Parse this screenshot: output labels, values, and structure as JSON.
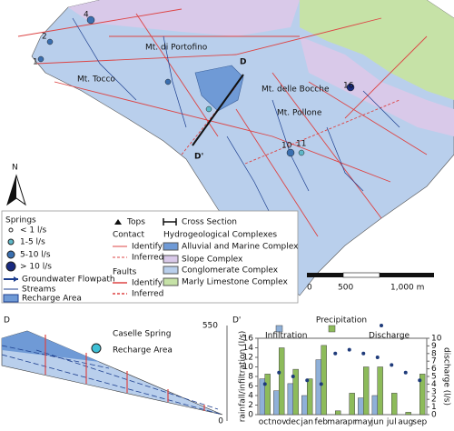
{
  "map": {
    "labels": [
      "Mt. di Portofino",
      "Mt. Tocco",
      "D",
      "Mt. delle Bocche",
      "Mt. Pollone",
      "D'",
      "N"
    ],
    "spring_numbers": [
      "1",
      "2",
      "4",
      "10",
      "11",
      "16"
    ],
    "scale": [
      "0",
      "500",
      "1,000 m"
    ]
  },
  "legend": {
    "springs_title": "Springs",
    "springs": [
      "< 1 l/s",
      "1-5 l/s",
      "5-10 l/s",
      "> 10 l/s"
    ],
    "flowpath": "Groundwater Flowpath",
    "streams": "Streams",
    "recharge": "Recharge Area",
    "tops": "Tops",
    "contact": "Contact",
    "contact_identify": "Identify",
    "contact_inferred": "Inferred",
    "faults": "Faults",
    "faults_identify": "Identify",
    "faults_inferred": "Inferred",
    "cross_section": "Cross Section",
    "complexes_title": "Hydrogeological Complexes",
    "complexes": [
      "Alluvial and Marine Complex",
      "Slope Complex",
      "Conglomerate Complex",
      "Marly Limestone Complex"
    ]
  },
  "cross_section": {
    "panel": "D",
    "spring": "Caselle Spring",
    "area": "Recharge Area",
    "top": "550",
    "bottom": "0"
  },
  "chart_data": {
    "type": "bar",
    "panel": "D'",
    "title": "Precipitation",
    "categories": [
      "oct",
      "nov",
      "dec",
      "jan",
      "feb",
      "mar",
      "apr",
      "may",
      "jun",
      "jul",
      "aug",
      "sep"
    ],
    "ylabel": "rainfall/infiltration (l/s)",
    "y2label": "discharge (l/s)",
    "ylim": [
      0,
      16
    ],
    "yticks": [
      0,
      2,
      4,
      6,
      8,
      10,
      12,
      14,
      16
    ],
    "y2lim": [
      0,
      10
    ],
    "y2ticks": [
      0,
      1,
      2,
      3,
      4,
      5,
      6,
      7,
      8,
      9,
      10
    ],
    "series": [
      {
        "name": "Infiltration",
        "color": "#8fb0d8",
        "values": [
          7.5,
          5,
          6.5,
          4,
          11.5,
          0,
          0,
          3.5,
          4,
          0,
          0,
          0
        ]
      },
      {
        "name": "Precipitation",
        "color": "#8dbb5a",
        "values": [
          8.5,
          14,
          9.5,
          7.5,
          14.5,
          0.8,
          4.5,
          10,
          10,
          4.5,
          0.5,
          8.5
        ]
      },
      {
        "name": "Discharge",
        "color": "#1f3b7a",
        "axis": "y2",
        "values": [
          4,
          5.5,
          5,
          4.5,
          4,
          8,
          8.5,
          8,
          7.5,
          6.5,
          5.5,
          4.5
        ]
      }
    ]
  }
}
